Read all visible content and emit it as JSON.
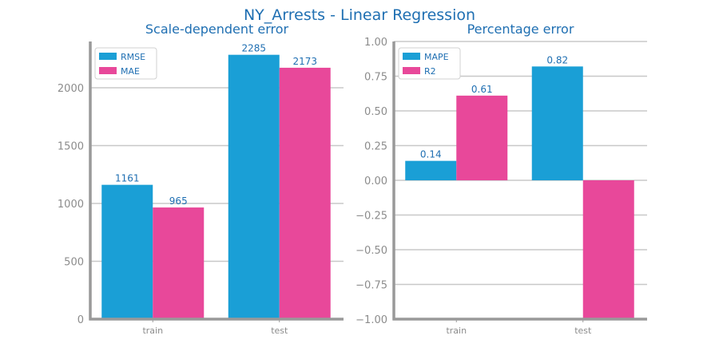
{
  "figure": {
    "suptitle": "NY_Arrests - Linear Regression"
  },
  "colors": {
    "title": "#1f6fb2",
    "blue": "#1a9fd6",
    "pink": "#e8489a",
    "grid": "#c8c8c8",
    "axis": "#999999",
    "tick_text": "#8c8c8c",
    "value_text": "#1f6fb2"
  },
  "chart_data": [
    {
      "type": "bar",
      "title": "Scale-dependent error",
      "categories": [
        "train",
        "test"
      ],
      "series": [
        {
          "name": "RMSE",
          "values": [
            1161,
            2285
          ],
          "labels": [
            "1161",
            "2285"
          ],
          "color": "#1a9fd6"
        },
        {
          "name": "MAE",
          "values": [
            965,
            2173
          ],
          "labels": [
            "965",
            "2173"
          ],
          "color": "#e8489a"
        }
      ],
      "ylim": [
        0,
        2400
      ],
      "yticks": [
        0,
        500,
        1000,
        1500,
        2000
      ],
      "ytick_labels": [
        "0",
        "500",
        "1000",
        "1500",
        "2000"
      ],
      "grid": true,
      "legend": "top-left"
    },
    {
      "type": "bar",
      "title": "Percentage error",
      "categories": [
        "train",
        "test"
      ],
      "series": [
        {
          "name": "MAPE",
          "values": [
            0.14,
            0.82
          ],
          "labels": [
            "0.14",
            "0.82"
          ],
          "color": "#1a9fd6"
        },
        {
          "name": "R2",
          "values": [
            0.61,
            -1.0
          ],
          "labels": [
            "0.61",
            ""
          ],
          "color": "#e8489a"
        }
      ],
      "ylim": [
        -1.0,
        1.0
      ],
      "yticks": [
        -1.0,
        -0.75,
        -0.5,
        -0.25,
        0.0,
        0.25,
        0.5,
        0.75,
        1.0
      ],
      "ytick_labels": [
        "−1.00",
        "−0.75",
        "−0.50",
        "−0.25",
        "0.00",
        "0.25",
        "0.50",
        "0.75",
        "1.00"
      ],
      "grid": true,
      "legend": "top-left"
    }
  ]
}
